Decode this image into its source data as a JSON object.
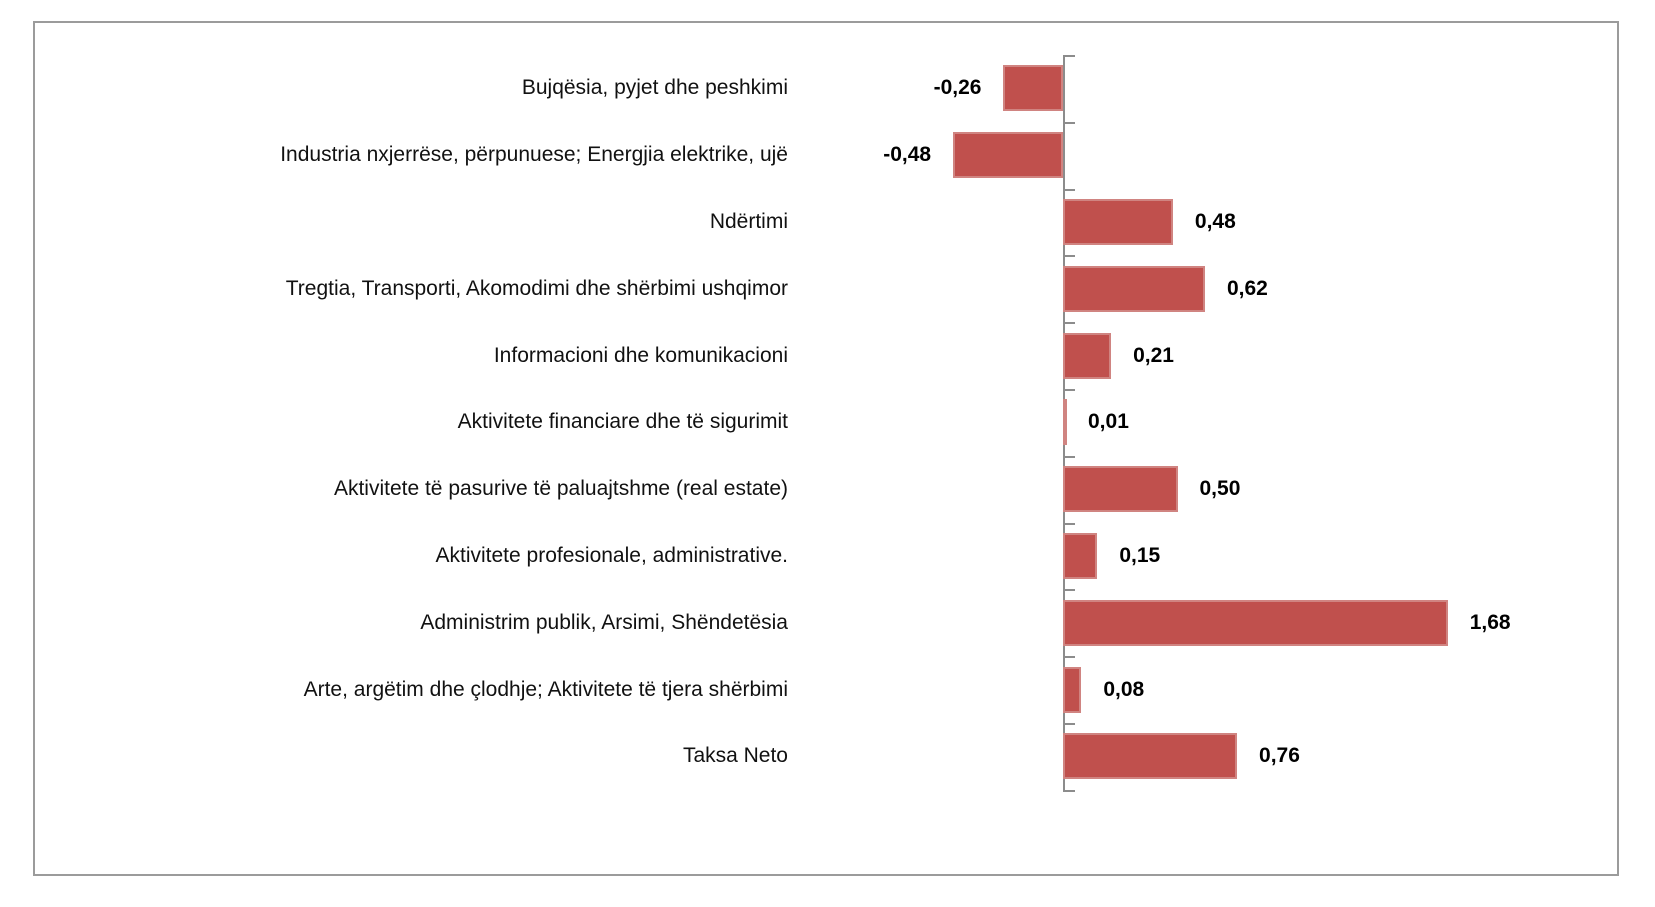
{
  "figure": {
    "background_color": "#ffffff",
    "frame_border_color": "#9b9b9b"
  },
  "chart_data": {
    "type": "bar",
    "orientation": "horizontal",
    "title": "",
    "xlabel": "",
    "ylabel": "",
    "grid": false,
    "legend": false,
    "axis_color": "#8c8c8c",
    "bar_color": "#c0504d",
    "bar_border_color": "#d08481",
    "value_format": "decimal-comma",
    "xlim": [
      -0.6,
      2.0
    ],
    "categories": [
      "Bujqësia, pyjet dhe peshkimi",
      "Industria nxjerrëse, përpunuese; Energjia elektrike, ujë",
      "Ndërtimi",
      "Tregtia, Transporti, Akomodimi dhe shërbimi ushqimor",
      "Informacioni dhe komunikacioni",
      "Aktivitete financiare dhe të sigurimit",
      "Aktivitete të pasurive të paluajtshme (real estate)",
      "Aktivitete profesionale, administrative.",
      "Administrim publik, Arsimi, Shëndetësia",
      "Arte, argëtim dhe çlodhje; Aktivitete të tjera shërbimi",
      "Taksa Neto"
    ],
    "values": [
      -0.26,
      -0.48,
      0.48,
      0.62,
      0.21,
      0.01,
      0.5,
      0.15,
      1.68,
      0.08,
      0.76
    ],
    "value_labels": [
      "-0,26",
      "-0,48",
      "0,48",
      "0,62",
      "0,21",
      "0,01",
      "0,50",
      "0,15",
      "1,68",
      "0,08",
      "0,76"
    ]
  }
}
